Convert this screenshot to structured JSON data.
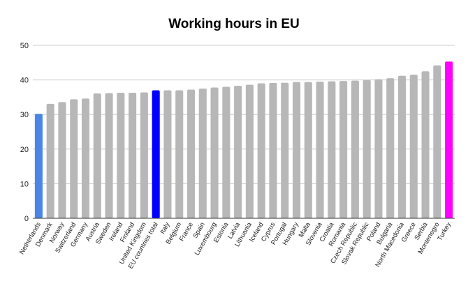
{
  "chart_data": {
    "type": "bar",
    "title": "Working hours in EU",
    "xlabel": "",
    "ylabel": "",
    "ylim": [
      0,
      50
    ],
    "yticks": [
      0,
      10,
      20,
      30,
      40,
      50
    ],
    "grid": true,
    "legend": "none",
    "categories": [
      "Netherlands",
      "Denmark",
      "Norway",
      "Switzerland",
      "Germany",
      "Austria",
      "Sweden",
      "Ireland",
      "Finland",
      "United Kingdom",
      "EU countries total",
      "Italy",
      "Belgium",
      "France",
      "Spain",
      "Luxembourg",
      "Estonia",
      "Latvia",
      "Lithuania",
      "Iceland",
      "Cyprus",
      "Portugal",
      "Hungary",
      "Malta",
      "Slovenia",
      "Croatia",
      "Romania",
      "Czech Republic",
      "Slovak Republic",
      "Poland",
      "Bulgaria",
      "North Macedonia",
      "Greece",
      "Serbia",
      "Montenegro",
      "Turkey"
    ],
    "values": [
      30.2,
      33.1,
      33.6,
      34.4,
      34.6,
      36.1,
      36.2,
      36.3,
      36.3,
      36.4,
      37.0,
      37.0,
      37.0,
      37.2,
      37.5,
      37.8,
      38.0,
      38.3,
      38.6,
      39.0,
      39.1,
      39.2,
      39.4,
      39.4,
      39.5,
      39.6,
      39.7,
      39.8,
      40.0,
      40.2,
      40.5,
      41.2,
      41.5,
      42.5,
      44.2,
      45.3
    ],
    "colors": {
      "default": "#b7b7b7",
      "highlights": {
        "Netherlands": "#4a86e8",
        "EU countries total": "#0000ff",
        "Turkey": "#ff00ff"
      },
      "grid": "#cccccc",
      "axis": "#333333"
    }
  }
}
